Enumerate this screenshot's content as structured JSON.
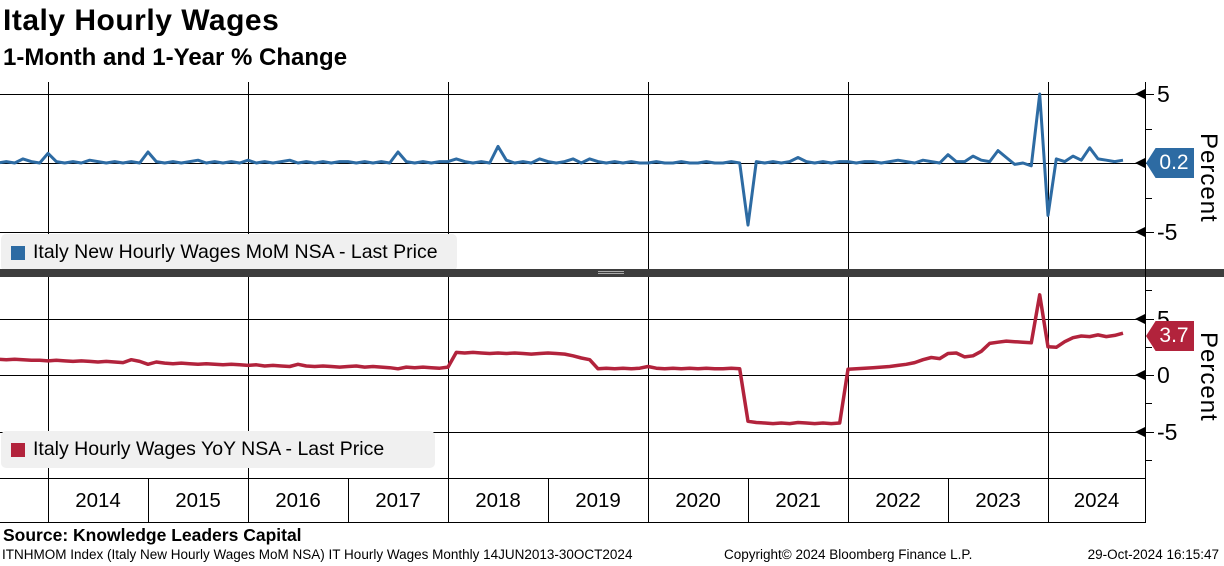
{
  "header": {
    "title": "Italy Hourly Wages",
    "subtitle": "1-Month and 1-Year % Change"
  },
  "colors": {
    "mom_line": "#2d6ba3",
    "yoy_line": "#b2233c",
    "legend_bg": "#f0f0f0",
    "divider": "#3d3d3d",
    "grid": "#000000"
  },
  "panel_top": {
    "legend_label": "Italy New Hourly Wages MoM NSA - Last Price",
    "last_price": "0.2",
    "axis_label": "Percent",
    "tick_labels": [
      "5",
      "-5"
    ]
  },
  "panel_bottom": {
    "legend_label": "Italy Hourly Wages YoY NSA - Last Price",
    "last_price": "3.7",
    "axis_label": "Percent",
    "tick_labels": [
      "5",
      "0",
      "-5"
    ]
  },
  "x_axis": {
    "year_labels": [
      "2014",
      "2015",
      "2016",
      "2017",
      "2018",
      "2019",
      "2020",
      "2021",
      "2022",
      "2023",
      "2024"
    ]
  },
  "footer": {
    "source": "Source: Knowledge Leaders Capital",
    "info": "ITNHMOM Index (Italy New Hourly Wages MoM NSA) IT Hourly Wages  Monthly 14JUN2013-30OCT2024",
    "copyright": "Copyright© 2024 Bloomberg Finance L.P.",
    "datetime": "29-Oct-2024 16:15:47"
  },
  "chart_data": [
    {
      "type": "line",
      "title": "Italy New Hourly Wages MoM NSA - Last Price",
      "ylabel": "Percent",
      "start_month": "2013-06",
      "frequency": "monthly",
      "ylim": [
        -8,
        6
      ],
      "ygridlines": [
        5,
        0,
        -5
      ],
      "last_value": 0.2,
      "values": [
        0.1,
        0.0,
        0.1,
        0.0,
        0.3,
        0.1,
        0.0,
        0.7,
        0.1,
        0.0,
        0.1,
        0.0,
        0.2,
        0.1,
        0.0,
        0.1,
        0.0,
        0.1,
        0.0,
        0.8,
        0.1,
        0.0,
        0.1,
        0.0,
        0.1,
        0.2,
        0.0,
        0.1,
        0.0,
        0.1,
        0.0,
        0.2,
        0.0,
        0.1,
        0.0,
        0.1,
        0.2,
        0.0,
        0.1,
        0.0,
        0.1,
        0.0,
        0.1,
        0.1,
        0.0,
        0.1,
        0.0,
        0.1,
        0.0,
        0.8,
        0.1,
        0.0,
        0.1,
        0.0,
        0.1,
        0.1,
        0.3,
        0.1,
        0.0,
        0.1,
        0.0,
        1.2,
        0.2,
        0.0,
        0.1,
        0.0,
        0.3,
        0.1,
        0.0,
        0.1,
        0.3,
        0.0,
        0.3,
        0.1,
        0.0,
        0.1,
        0.0,
        0.1,
        0.0,
        0.0,
        0.1,
        0.0,
        0.0,
        0.1,
        0.0,
        0.0,
        0.1,
        0.0,
        0.0,
        0.1,
        0.0,
        -4.5,
        0.1,
        0.0,
        0.1,
        0.0,
        0.1,
        0.4,
        0.1,
        0.0,
        0.1,
        0.0,
        0.1,
        0.1,
        0.0,
        0.1,
        0.1,
        0.0,
        0.1,
        0.2,
        0.1,
        0.0,
        0.2,
        0.1,
        0.0,
        0.6,
        0.1,
        0.1,
        0.5,
        0.2,
        0.1,
        0.9,
        0.4,
        -0.1,
        0.0,
        -0.2,
        5.0,
        -3.8,
        0.3,
        0.1,
        0.5,
        0.2,
        1.1,
        0.3,
        0.2,
        0.1,
        0.2
      ]
    },
    {
      "type": "line",
      "title": "Italy Hourly Wages YoY NSA - Last Price",
      "ylabel": "Percent",
      "start_month": "2013-06",
      "frequency": "monthly",
      "ylim": [
        -9,
        8.5
      ],
      "ygridlines": [
        5,
        0,
        -5
      ],
      "last_value": 3.7,
      "values": [
        1.4,
        1.4,
        1.35,
        1.4,
        1.35,
        1.3,
        1.3,
        1.25,
        1.3,
        1.25,
        1.2,
        1.25,
        1.2,
        1.15,
        1.2,
        1.15,
        1.1,
        1.35,
        1.2,
        0.95,
        1.15,
        1.05,
        1.0,
        1.05,
        1.0,
        0.95,
        1.0,
        0.95,
        0.9,
        0.95,
        0.9,
        0.85,
        0.9,
        0.8,
        0.85,
        0.8,
        0.75,
        0.95,
        0.8,
        0.75,
        0.8,
        0.75,
        0.7,
        0.75,
        0.8,
        0.7,
        0.75,
        0.7,
        0.65,
        0.55,
        0.7,
        0.65,
        0.7,
        0.65,
        0.6,
        0.7,
        2.0,
        1.95,
        2.0,
        1.95,
        1.9,
        1.95,
        1.9,
        1.95,
        1.9,
        1.85,
        1.9,
        1.95,
        1.9,
        1.85,
        1.7,
        1.5,
        1.35,
        0.55,
        0.6,
        0.55,
        0.6,
        0.55,
        0.6,
        0.75,
        0.6,
        0.55,
        0.6,
        0.55,
        0.6,
        0.55,
        0.6,
        0.55,
        0.55,
        0.6,
        0.55,
        -4.1,
        -4.2,
        -4.25,
        -4.3,
        -4.25,
        -4.3,
        -4.2,
        -4.25,
        -4.3,
        -4.25,
        -4.3,
        -4.25,
        0.5,
        0.55,
        0.6,
        0.65,
        0.7,
        0.75,
        0.85,
        0.95,
        1.1,
        1.35,
        1.55,
        1.45,
        1.9,
        1.95,
        1.6,
        1.7,
        2.1,
        2.8,
        2.9,
        3.0,
        2.95,
        2.9,
        2.85,
        7.1,
        2.5,
        2.45,
        2.95,
        3.3,
        3.45,
        3.4,
        3.55,
        3.4,
        3.5,
        3.7
      ]
    }
  ]
}
